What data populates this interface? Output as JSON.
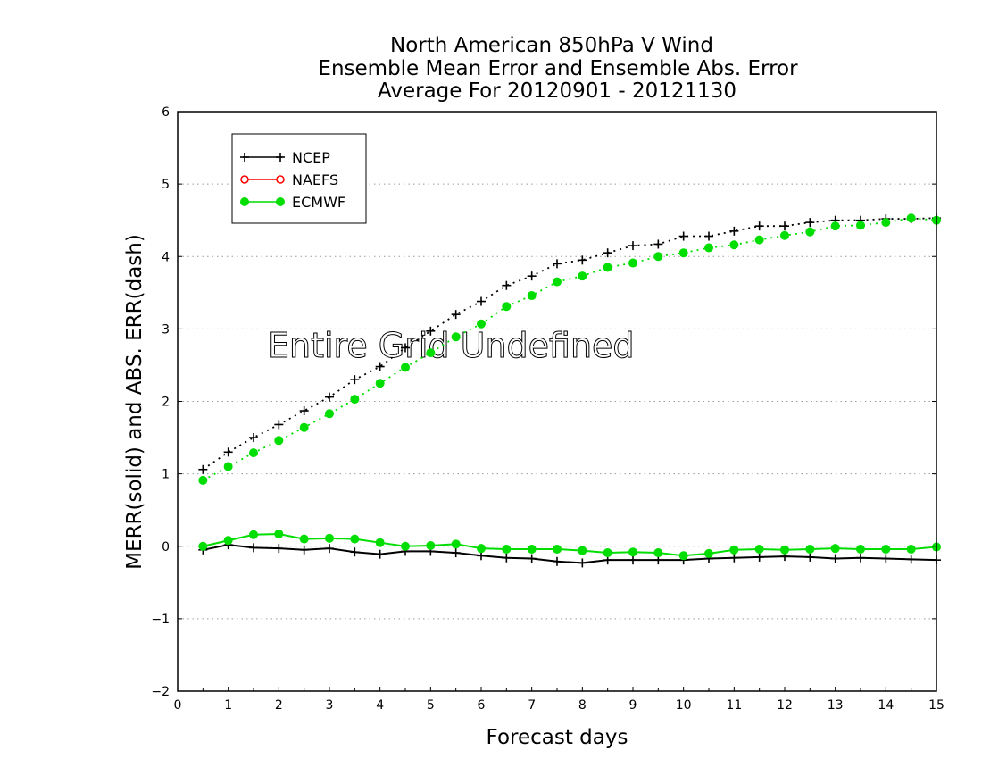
{
  "chart_data": {
    "type": "line",
    "title": [
      "North American 850hPa V Wind",
      "Ensemble Mean Error and Ensemble Abs. Error",
      "Average For 20120901 - 20121130"
    ],
    "xlabel": "Forecast days",
    "ylabel": "MERR(solid) and ABS. ERR(dash)",
    "annotation": "Entire Grid Undefined",
    "xlim": [
      0,
      15
    ],
    "ylim": [
      -2,
      6
    ],
    "xticks": [
      "0",
      "1",
      "2",
      "3",
      "4",
      "5",
      "6",
      "7",
      "8",
      "9",
      "10",
      "11",
      "12",
      "13",
      "14",
      "15"
    ],
    "yticks": [
      "−2",
      "−1",
      "0",
      "1",
      "2",
      "3",
      "4",
      "5",
      "6"
    ],
    "grid": "horizontal dotted",
    "legend_position": "top-left",
    "x": [
      0.5,
      1,
      1.5,
      2,
      2.5,
      3,
      3.5,
      4,
      4.5,
      5,
      5.5,
      6,
      6.5,
      7,
      7.5,
      8,
      8.5,
      9,
      9.5,
      10,
      10.5,
      11,
      11.5,
      12,
      12.5,
      13,
      13.5,
      14,
      14.5,
      15
    ],
    "series": [
      {
        "name": "NCEP",
        "color": "#000000",
        "marker": "plus",
        "abs_error": [
          1.06,
          1.3,
          1.5,
          1.68,
          1.87,
          2.06,
          2.3,
          2.48,
          2.74,
          2.97,
          3.2,
          3.38,
          3.6,
          3.73,
          3.9,
          3.95,
          4.05,
          4.15,
          4.17,
          4.28,
          4.28,
          4.35,
          4.42,
          4.42,
          4.47,
          4.5,
          4.5,
          4.52,
          4.52,
          4.53
        ],
        "mean_error": [
          -0.05,
          0.02,
          -0.02,
          -0.03,
          -0.05,
          -0.03,
          -0.08,
          -0.11,
          -0.07,
          -0.07,
          -0.09,
          -0.13,
          -0.16,
          -0.17,
          -0.21,
          -0.23,
          -0.19,
          -0.19,
          -0.19,
          -0.19,
          -0.17,
          -0.16,
          -0.15,
          -0.14,
          -0.15,
          -0.17,
          -0.16,
          -0.17,
          -0.18,
          -0.19
        ]
      },
      {
        "name": "NAEFS",
        "color": "#ff0000",
        "marker": "open-circle",
        "abs_error": [],
        "mean_error": []
      },
      {
        "name": "ECMWF",
        "color": "#00dd00",
        "marker": "filled-circle",
        "abs_error": [
          0.91,
          1.1,
          1.29,
          1.46,
          1.64,
          1.83,
          2.03,
          2.25,
          2.47,
          2.67,
          2.89,
          3.07,
          3.31,
          3.46,
          3.65,
          3.73,
          3.85,
          3.91,
          4.0,
          4.05,
          4.12,
          4.16,
          4.23,
          4.29,
          4.34,
          4.42,
          4.43,
          4.47,
          4.53,
          4.5
        ],
        "mean_error": [
          0.0,
          0.08,
          0.16,
          0.17,
          0.1,
          0.11,
          0.1,
          0.05,
          0.0,
          0.01,
          0.03,
          -0.03,
          -0.04,
          -0.04,
          -0.04,
          -0.06,
          -0.09,
          -0.08,
          -0.09,
          -0.13,
          -0.1,
          -0.05,
          -0.04,
          -0.05,
          -0.04,
          -0.03,
          -0.04,
          -0.04,
          -0.04,
          -0.01
        ]
      }
    ]
  }
}
